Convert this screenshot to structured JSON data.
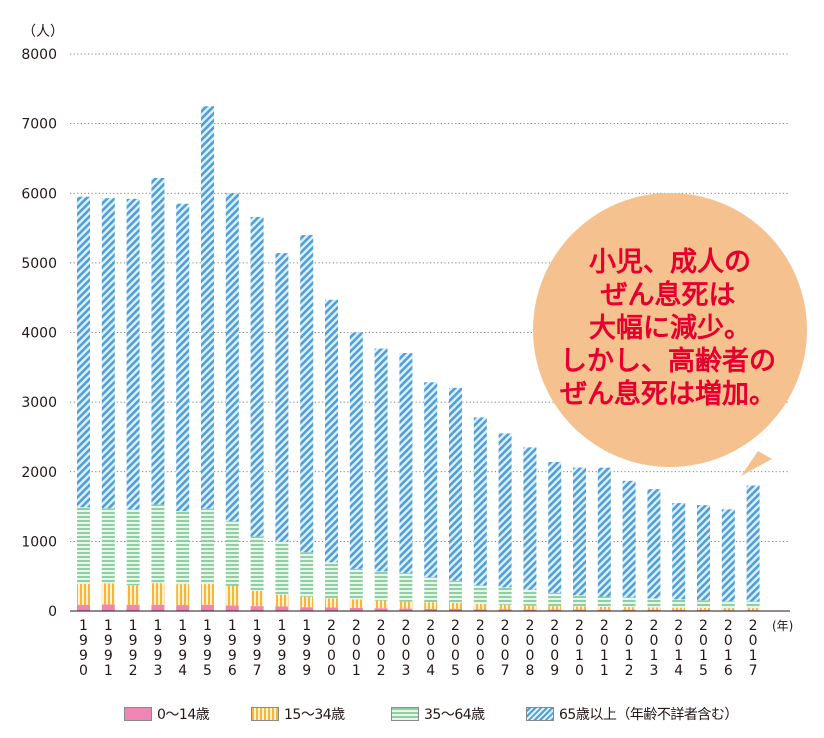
{
  "chart_data": {
    "type": "bar",
    "stacked": true,
    "y_unit_label": "（人）",
    "x_unit_label": "(年)",
    "ylim": [
      0,
      8000
    ],
    "yticks": [
      0,
      1000,
      2000,
      3000,
      4000,
      5000,
      6000,
      7000,
      8000
    ],
    "grid": "horizontal dotted",
    "categories": [
      "1990",
      "1991",
      "1992",
      "1993",
      "1994",
      "1995",
      "1996",
      "1997",
      "1998",
      "1999",
      "2000",
      "2001",
      "2002",
      "2003",
      "2004",
      "2005",
      "2006",
      "2007",
      "2008",
      "2009",
      "2010",
      "2011",
      "2012",
      "2013",
      "2014",
      "2015",
      "2016",
      "2017"
    ],
    "series": [
      {
        "name": "0〜14歳",
        "color": "#ef86b4",
        "values": [
          90,
          95,
          90,
          90,
          85,
          90,
          80,
          70,
          65,
          55,
          50,
          45,
          40,
          35,
          30,
          30,
          25,
          25,
          20,
          20,
          20,
          18,
          18,
          15,
          15,
          15,
          12,
          12
        ]
      },
      {
        "name": "15〜34歳",
        "color": "#f6b53d",
        "values": [
          300,
          300,
          280,
          310,
          300,
          300,
          280,
          220,
          170,
          150,
          130,
          120,
          110,
          100,
          95,
          85,
          75,
          65,
          55,
          50,
          45,
          40,
          38,
          35,
          33,
          30,
          28,
          28
        ]
      },
      {
        "name": "35〜64歳",
        "color": "#8fcfa2",
        "values": [
          1100,
          1080,
          1090,
          1130,
          1050,
          1080,
          930,
          780,
          760,
          640,
          520,
          440,
          420,
          410,
          360,
          320,
          270,
          250,
          230,
          190,
          160,
          150,
          140,
          130,
          120,
          110,
          100,
          100
        ]
      },
      {
        "name": "65歳以上（年齢不詳者含む）",
        "color": "#4f9fd8",
        "values": [
          4460,
          4455,
          4460,
          4690,
          4415,
          5780,
          4710,
          4590,
          4145,
          4555,
          3770,
          3395,
          3200,
          3160,
          2800,
          2770,
          2410,
          2210,
          2045,
          1880,
          1835,
          1850,
          1674,
          1570,
          1382,
          1365,
          1320,
          1662
        ]
      }
    ],
    "totals": [
      5950,
      5930,
      5920,
      6220,
      5850,
      7250,
      6000,
      5660,
      5140,
      5400,
      4470,
      4000,
      3770,
      3705,
      3285,
      3205,
      2780,
      2550,
      2350,
      2140,
      2060,
      2058,
      1870,
      1750,
      1550,
      1520,
      1460,
      1802
    ],
    "annotation": [
      "小児、成人の",
      "ぜん息死は",
      "大幅に減少。",
      "しかし、高齢者の",
      "ぜん息死は増加。"
    ],
    "annotation_colors": {
      "bubble": "#f5c28f",
      "text": "#e5002d"
    }
  }
}
